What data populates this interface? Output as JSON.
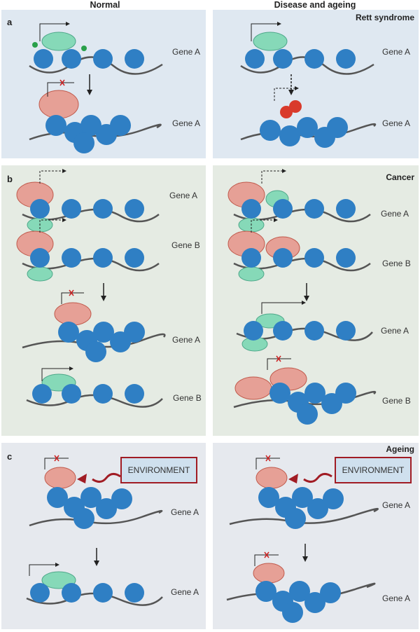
{
  "columns": {
    "normal": "Normal",
    "disease": "Disease and ageing"
  },
  "panels": {
    "a": {
      "letter": "a",
      "condition": "Rett syndrome"
    },
    "b": {
      "letter": "b",
      "condition": "Cancer"
    },
    "c": {
      "letter": "c",
      "condition": "Ageing"
    }
  },
  "gene_a": "Gene A",
  "gene_b": "Gene B",
  "environment": "ENVIRONMENT",
  "colors": {
    "panel_a": "#dfe8f1",
    "panel_b": "#e5ebe3",
    "panel_c": "#e6e9ee",
    "nucleosome": "#2f7fc4",
    "methyl_binding": "#e05a4a",
    "activator": "#86d9b8",
    "environment_border": "#a11c24"
  }
}
